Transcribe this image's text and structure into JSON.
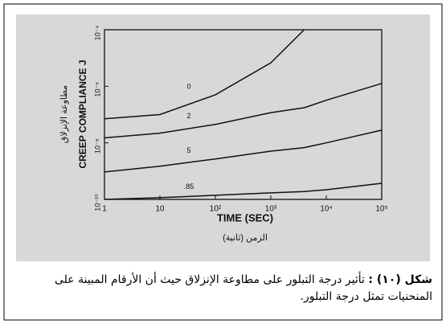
{
  "chart_data": {
    "type": "line",
    "log_x": true,
    "log_y": true,
    "x_label": "TIME (SEC)",
    "x_label_ar": "الزمن (ثانية)",
    "y_label": "CREEP COMPLIANCE J",
    "y_label_ar": "مطاوعة الإنزلاق",
    "x": [
      1,
      10,
      100,
      1000,
      4000,
      10000,
      100000
    ],
    "series": [
      {
        "name": "0",
        "color": "#111111",
        "values": [
          7.1e-08,
          1e-07,
          5e-07,
          6.8e-06,
          0.0001,
          null,
          null
        ]
      },
      {
        "name": "2",
        "color": "#111111",
        "values": [
          1.5e-08,
          2.2e-08,
          4.5e-08,
          1.17e-07,
          1.74e-07,
          3.2e-07,
          1.26e-06
        ]
      },
      {
        "name": "5",
        "color": "#111111",
        "values": [
          9.3e-10,
          1.48e-09,
          2.7e-09,
          5.1e-09,
          6.8e-09,
          1e-08,
          2.8e-08
        ]
      },
      {
        "name": ".85",
        "color": "#111111",
        "values": [
          1e-10,
          1.15e-10,
          1.4e-10,
          1.7e-10,
          1.9e-10,
          2.2e-10,
          3.7e-10
        ]
      }
    ],
    "xlim": [
      1,
      100000
    ],
    "xticks": [
      1,
      10,
      {
        "value": 100,
        "label": "10²"
      },
      {
        "value": 1000,
        "label": "10³"
      },
      {
        "value": 10000,
        "label": "10⁴"
      },
      {
        "value": 100000,
        "label": "10⁵"
      }
    ],
    "ylim": [
      1e-10,
      0.0001
    ],
    "yticks": [
      {
        "value": 1e-10,
        "label": "10⁻¹⁰"
      },
      {
        "value": 1e-08,
        "label": "10⁻⁸"
      },
      {
        "value": 1e-06,
        "label": "10⁻⁶"
      },
      {
        "value": 0.0001,
        "label": "10⁻⁴"
      }
    ]
  },
  "caption": {
    "label": "شكل (١٠) :",
    "text": "تأثير درجة التبلور على مطاوعة الإنزلاق حيث أن الأرقام المبينة على المنحنيات تمثل درجة التبلور."
  }
}
